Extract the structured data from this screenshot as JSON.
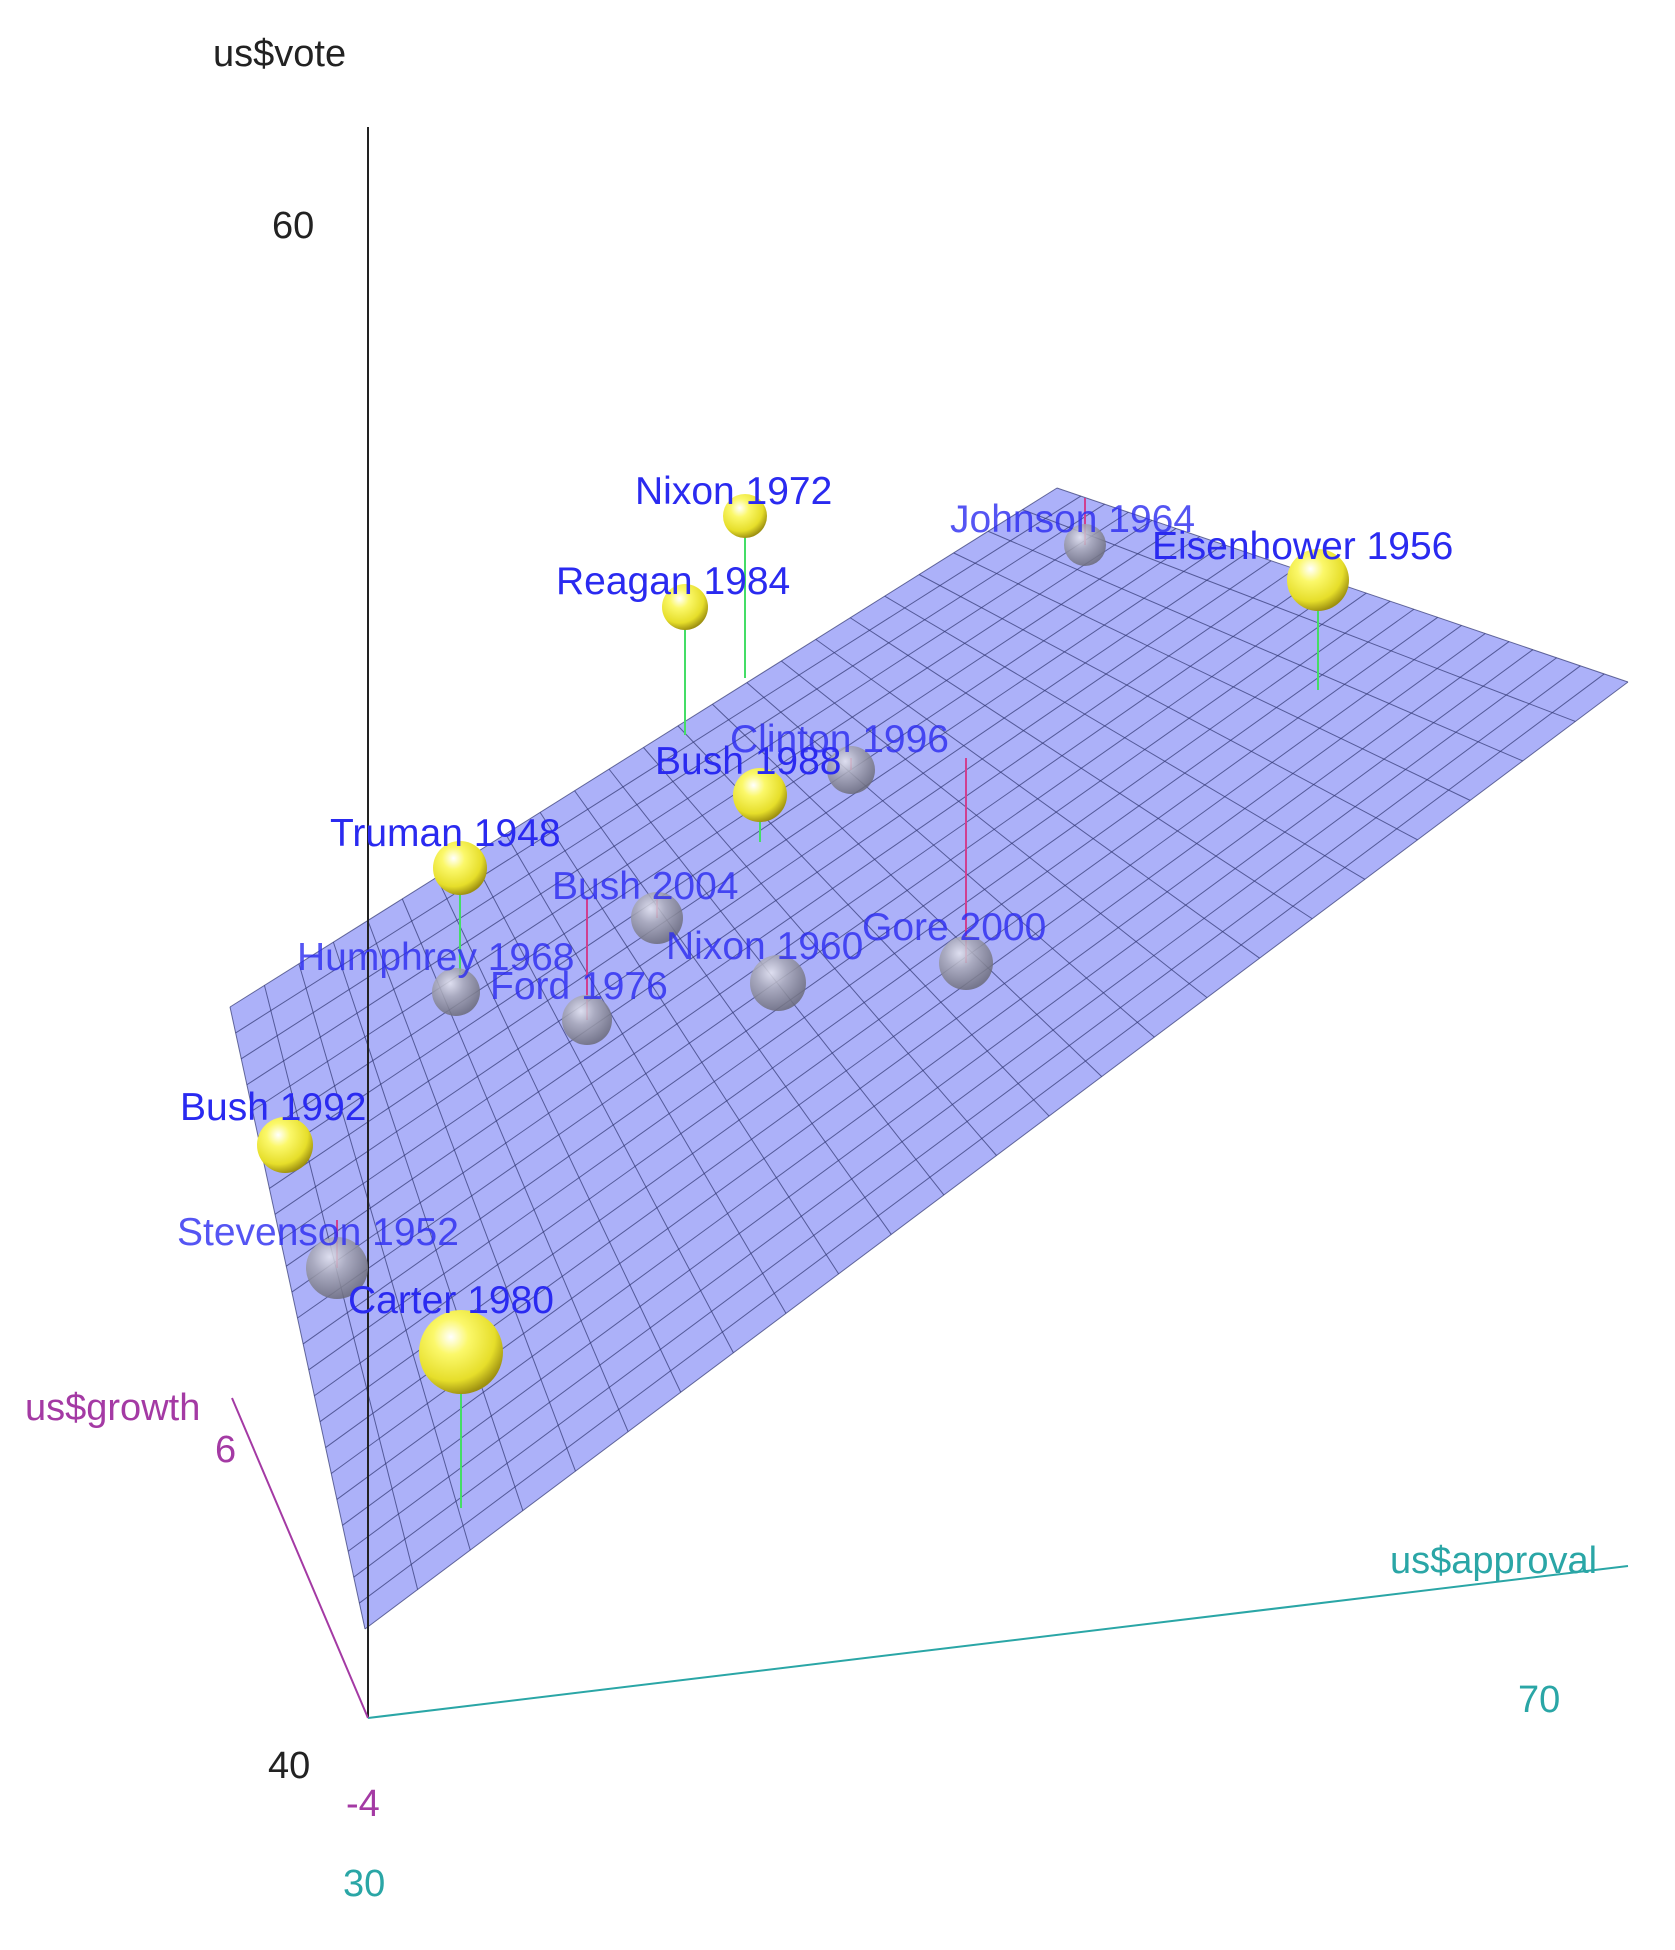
{
  "colors": {
    "vote_axis": "#222222",
    "approval_axis": "#2aa6a6",
    "growth_axis": "#a43aa4",
    "plane_fill": "#9aa0f8",
    "plane_grid": "#2f3470",
    "point_above": "#f2ee3c",
    "point_below": "#a8a8b4",
    "label": "#2a2af0",
    "resid_up": "#44dd66",
    "resid_down": "#d04090"
  },
  "chart_data": {
    "type": "scatter",
    "subtype": "3d-scatter-with-regression-plane",
    "axes": {
      "z": {
        "label": "us$vote",
        "ticks": [
          "40",
          "60"
        ],
        "range": [
          40,
          60
        ]
      },
      "x": {
        "label": "us$approval",
        "ticks": [
          "30",
          "70"
        ],
        "range": [
          30,
          70
        ]
      },
      "y": {
        "label": "us$growth",
        "ticks": [
          "-4",
          "6"
        ],
        "range": [
          -4,
          6
        ]
      }
    },
    "grid": true,
    "regression_plane": true,
    "points": [
      {
        "label": "Nixon 1972",
        "side": "above"
      },
      {
        "label": "Reagan 1984",
        "side": "above"
      },
      {
        "label": "Johnson 1964",
        "side": "below"
      },
      {
        "label": "Eisenhower 1956",
        "side": "above"
      },
      {
        "label": "Clinton 1996",
        "side": "below"
      },
      {
        "label": "Bush 1988",
        "side": "above"
      },
      {
        "label": "Truman 1948",
        "side": "above"
      },
      {
        "label": "Bush 2004",
        "side": "below"
      },
      {
        "label": "Nixon 1960",
        "side": "below"
      },
      {
        "label": "Gore 2000",
        "side": "below"
      },
      {
        "label": "Humphrey 1968",
        "side": "below"
      },
      {
        "label": "Ford 1976",
        "side": "below"
      },
      {
        "label": "Bush 1992",
        "side": "above"
      },
      {
        "label": "Stevenson 1952",
        "side": "below"
      },
      {
        "label": "Carter 1980",
        "side": "above"
      }
    ]
  }
}
